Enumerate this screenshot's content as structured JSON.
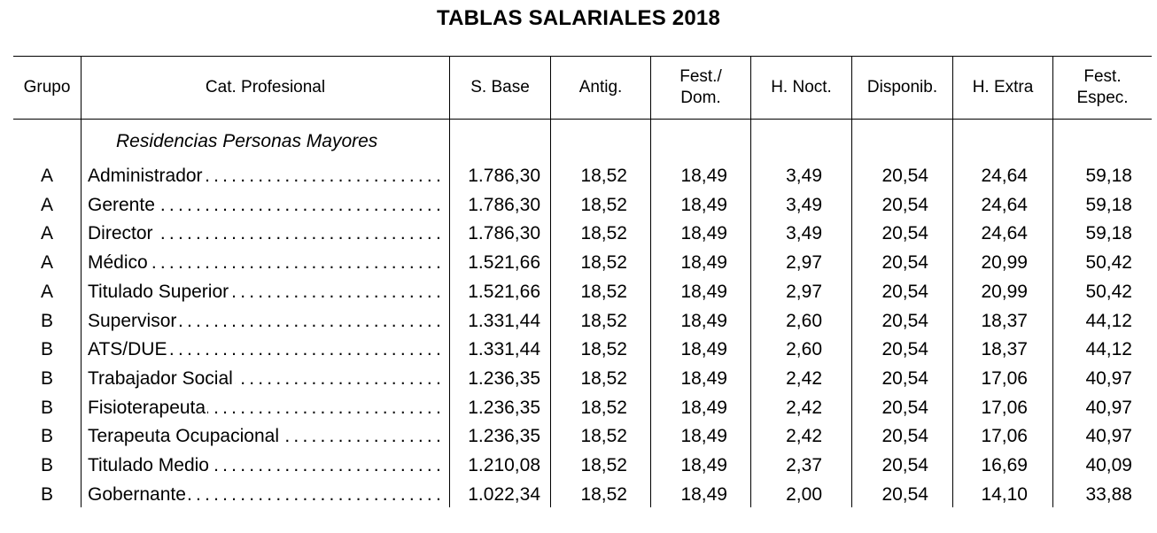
{
  "title": "TABLAS SALARIALES 2018",
  "headers": [
    "Grupo",
    "Cat. Profesional",
    "S. Base",
    "Antig.",
    "Fest./\nDom.",
    "H. Noct.",
    "Disponib.",
    "H. Extra",
    "Fest.\nEspec."
  ],
  "section": "Residencias Personas Mayores",
  "rows": [
    {
      "grupo": "A",
      "cat": "Administrador",
      "base": "1.786,30",
      "antig": "18,52",
      "fest": "18,49",
      "noct": "3,49",
      "disp": "20,54",
      "extra": "24,64",
      "espec": "59,18"
    },
    {
      "grupo": "A",
      "cat": "Gerente",
      "base": "1.786,30",
      "antig": "18,52",
      "fest": "18,49",
      "noct": "3,49",
      "disp": "20,54",
      "extra": "24,64",
      "espec": "59,18"
    },
    {
      "grupo": "A",
      "cat": "Director",
      "base": "1.786,30",
      "antig": "18,52",
      "fest": "18,49",
      "noct": "3,49",
      "disp": "20,54",
      "extra": "24,64",
      "espec": "59,18"
    },
    {
      "grupo": "A",
      "cat": "Médico",
      "base": "1.521,66",
      "antig": "18,52",
      "fest": "18,49",
      "noct": "2,97",
      "disp": "20,54",
      "extra": "20,99",
      "espec": "50,42"
    },
    {
      "grupo": "A",
      "cat": "Titulado Superior",
      "base": "1.521,66",
      "antig": "18,52",
      "fest": "18,49",
      "noct": "2,97",
      "disp": "20,54",
      "extra": "20,99",
      "espec": "50,42"
    },
    {
      "grupo": "B",
      "cat": "Supervisor",
      "base": "1.331,44",
      "antig": "18,52",
      "fest": "18,49",
      "noct": "2,60",
      "disp": "20,54",
      "extra": "18,37",
      "espec": "44,12"
    },
    {
      "grupo": "B",
      "cat": "ATS/DUE",
      "base": "1.331,44",
      "antig": "18,52",
      "fest": "18,49",
      "noct": "2,60",
      "disp": "20,54",
      "extra": "18,37",
      "espec": "44,12"
    },
    {
      "grupo": "B",
      "cat": "Trabajador Social",
      "base": "1.236,35",
      "antig": "18,52",
      "fest": "18,49",
      "noct": "2,42",
      "disp": "20,54",
      "extra": "17,06",
      "espec": "40,97"
    },
    {
      "grupo": "B",
      "cat": "Fisioterapeuta",
      "base": "1.236,35",
      "antig": "18,52",
      "fest": "18,49",
      "noct": "2,42",
      "disp": "20,54",
      "extra": "17,06",
      "espec": "40,97"
    },
    {
      "grupo": "B",
      "cat": "Terapeuta Ocupacional",
      "base": "1.236,35",
      "antig": "18,52",
      "fest": "18,49",
      "noct": "2,42",
      "disp": "20,54",
      "extra": "17,06",
      "espec": "40,97"
    },
    {
      "grupo": "B",
      "cat": "Titulado Medio",
      "base": "1.210,08",
      "antig": "18,52",
      "fest": "18,49",
      "noct": "2,37",
      "disp": "20,54",
      "extra": "16,69",
      "espec": "40,09"
    },
    {
      "grupo": "B",
      "cat": "Gobernante",
      "base": "1.022,34",
      "antig": "18,52",
      "fest": "18,49",
      "noct": "2,00",
      "disp": "20,54",
      "extra": "14,10",
      "espec": "33,88"
    }
  ]
}
